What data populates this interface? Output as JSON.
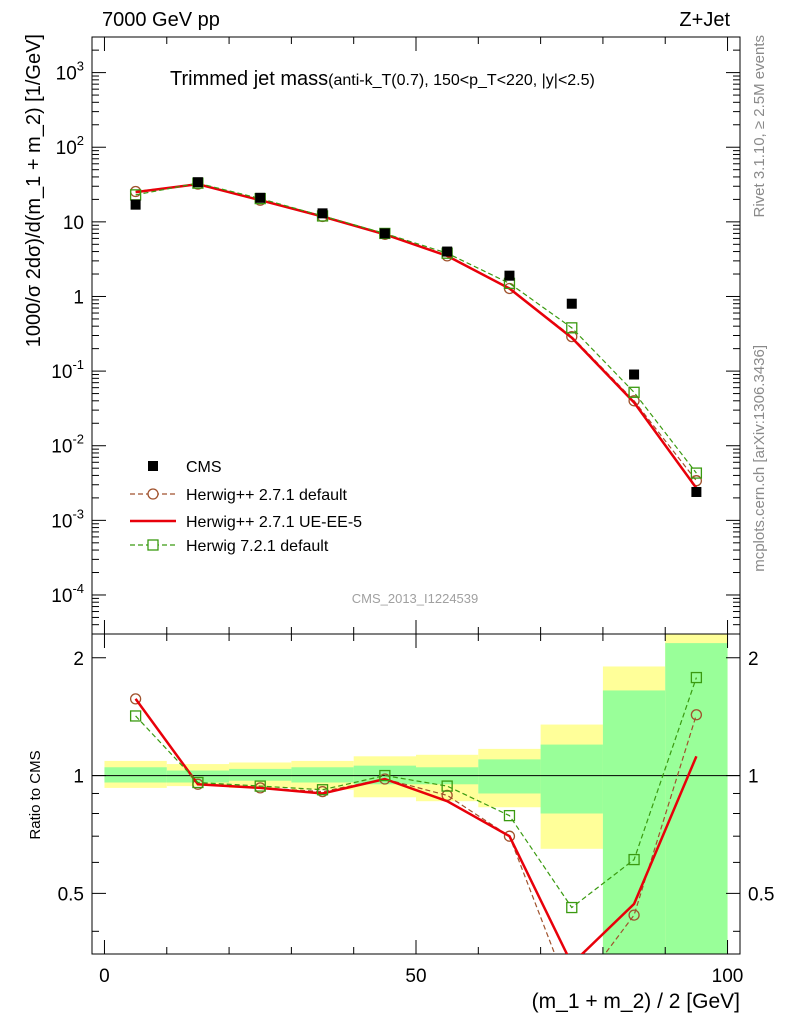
{
  "header": {
    "left": "7000 GeV pp",
    "right": "Z+Jet"
  },
  "side_labels": {
    "rivet": "Rivet 3.1.10, ≥ 2.5M events",
    "mcplots": "mcplots.cern.ch [arXiv:1306.3436]"
  },
  "chart_data": {
    "type": "line",
    "title_main": "Trimmed jet mass",
    "title_detail": "(anti-k_T(0.7), 150<p_T<220, |y|<2.5)",
    "watermark": "CMS_2013_I1224539",
    "xlabel": "(m_1 + m_2) / 2 [GeV]",
    "ylabel": "1000/σ 2dσ)/d(m_1 + m_2) [1/GeV]",
    "ratio_ylabel": "Ratio to CMS",
    "xlim": [
      -2,
      102
    ],
    "ylim": [
      3e-05,
      3000
    ],
    "yscale": "log",
    "ratio_ylim": [
      0.35,
      2.3
    ],
    "x_ticks": [
      0,
      50,
      100
    ],
    "y_ticks": [
      {
        "label": "10",
        "exp": "-4",
        "value": 0.0001
      },
      {
        "label": "10",
        "exp": "-3",
        "value": 0.001
      },
      {
        "label": "10",
        "exp": "-2",
        "value": 0.01
      },
      {
        "label": "10",
        "exp": "-1",
        "value": 0.1
      },
      {
        "label": "1",
        "exp": "",
        "value": 1
      },
      {
        "label": "10",
        "exp": "",
        "value": 10
      },
      {
        "label": "10",
        "exp": "2",
        "value": 100
      },
      {
        "label": "10",
        "exp": "3",
        "value": 1000
      }
    ],
    "ratio_ticks": [
      0.5,
      1,
      2
    ],
    "x": [
      5,
      15,
      25,
      35,
      45,
      55,
      65,
      75,
      85,
      95
    ],
    "series": [
      {
        "name": "CMS",
        "color": "#000000",
        "style": "marker",
        "values": [
          17,
          34,
          21,
          13,
          7,
          4,
          1.9,
          0.8,
          0.09,
          0.0024
        ]
      },
      {
        "name": "Herwig++ 2.7.1 default",
        "color": "#a0522d",
        "style": "dashed-circle",
        "values": [
          25.5,
          32,
          19.5,
          11.8,
          6.8,
          3.5,
          1.28,
          0.29,
          0.04,
          0.0034
        ],
        "ratio": [
          1.57,
          0.95,
          0.93,
          0.91,
          0.98,
          0.89,
          0.7,
          0.27,
          0.44,
          1.43
        ]
      },
      {
        "name": "Herwig++ 2.7.1 UE-EE-5",
        "color": "#e8000a",
        "style": "solid",
        "values": [
          25,
          32,
          19.5,
          11.8,
          6.8,
          3.5,
          1.28,
          0.28,
          0.038,
          0.0027
        ],
        "ratio": [
          1.57,
          0.95,
          0.93,
          0.9,
          0.98,
          0.86,
          0.7,
          0.33,
          0.47,
          1.12
        ]
      },
      {
        "name": "Herwig 7.2.1 default",
        "color": "#3a9a10",
        "style": "dashed-square",
        "values": [
          23,
          33,
          20.5,
          12,
          7,
          3.8,
          1.5,
          0.38,
          0.052,
          0.0043
        ],
        "ratio": [
          1.42,
          0.96,
          0.94,
          0.92,
          1.0,
          0.94,
          0.79,
          0.46,
          0.61,
          1.78
        ]
      }
    ],
    "bands": {
      "x_edges": [
        0,
        10,
        20,
        30,
        40,
        50,
        60,
        70,
        80,
        90,
        100
      ],
      "green": [
        [
          0.96,
          1.05
        ],
        [
          0.96,
          1.03
        ],
        [
          0.97,
          1.04
        ],
        [
          0.96,
          1.05
        ],
        [
          0.95,
          1.06
        ],
        [
          0.95,
          1.05
        ],
        [
          0.9,
          1.1
        ],
        [
          0.8,
          1.2
        ],
        [
          0.35,
          1.65
        ],
        [
          0.35,
          2.18
        ]
      ],
      "yellow": [
        [
          0.93,
          1.09
        ],
        [
          0.94,
          1.07
        ],
        [
          0.93,
          1.08
        ],
        [
          0.92,
          1.09
        ],
        [
          0.88,
          1.12
        ],
        [
          0.86,
          1.13
        ],
        [
          0.83,
          1.17
        ],
        [
          0.65,
          1.35
        ],
        [
          0.35,
          1.9
        ],
        [
          0.35,
          2.3
        ]
      ]
    }
  }
}
